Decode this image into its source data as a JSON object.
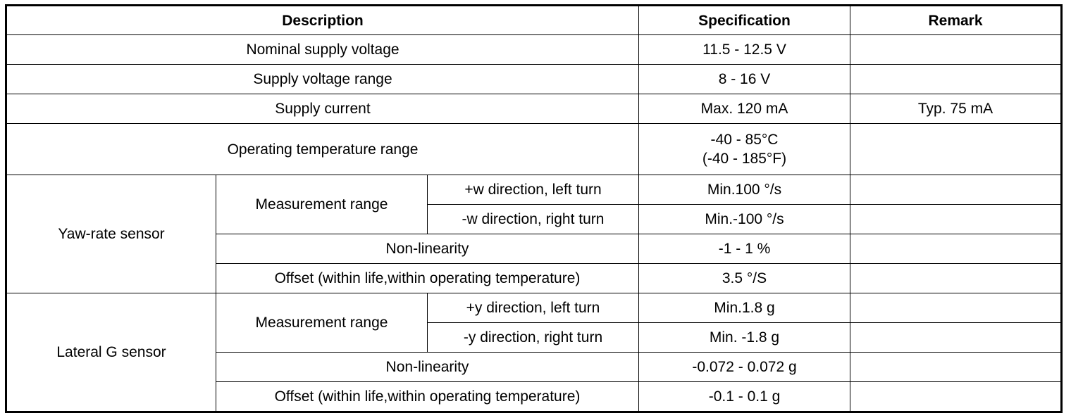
{
  "headers": {
    "description": "Description",
    "specification": "Specification",
    "remark": "Remark"
  },
  "general": [
    {
      "description": "Nominal supply voltage",
      "spec": "11.5 - 12.5 V",
      "remark": ""
    },
    {
      "description": "Supply voltage range",
      "spec": "8 - 16 V",
      "remark": ""
    },
    {
      "description": "Supply current",
      "spec": "Max. 120 mA",
      "remark": "Typ. 75 mA"
    },
    {
      "description": "Operating temperature range",
      "spec_line1": "-40 - 85°C",
      "spec_line2": "(-40 - 185°F)",
      "remark": ""
    }
  ],
  "yaw": {
    "label": "Yaw-rate sensor",
    "measurement_label": "Measurement range",
    "rows": [
      {
        "direction": "+w direction, left turn",
        "spec": "Min.100 °/s",
        "remark": ""
      },
      {
        "direction": "-w direction, right turn",
        "spec": "Min.-100 °/s",
        "remark": ""
      }
    ],
    "nonlinearity": {
      "label": "Non-linearity",
      "spec": "-1 - 1 %",
      "remark": ""
    },
    "offset": {
      "label": "Offset (within life,within operating temperature)",
      "spec": "3.5 °/S",
      "remark": ""
    }
  },
  "lateral": {
    "label": "Lateral G sensor",
    "measurement_label": "Measurement range",
    "rows": [
      {
        "direction": "+y direction, left turn",
        "spec": "Min.1.8 g",
        "remark": ""
      },
      {
        "direction": "-y direction, right turn",
        "spec": "Min. -1.8 g",
        "remark": ""
      }
    ],
    "nonlinearity": {
      "label": "Non-linearity",
      "spec": "-0.072 - 0.072 g",
      "remark": ""
    },
    "offset": {
      "label": "Offset (within life,within operating temperature)",
      "spec": "-0.1 - 0.1 g",
      "remark": ""
    }
  }
}
